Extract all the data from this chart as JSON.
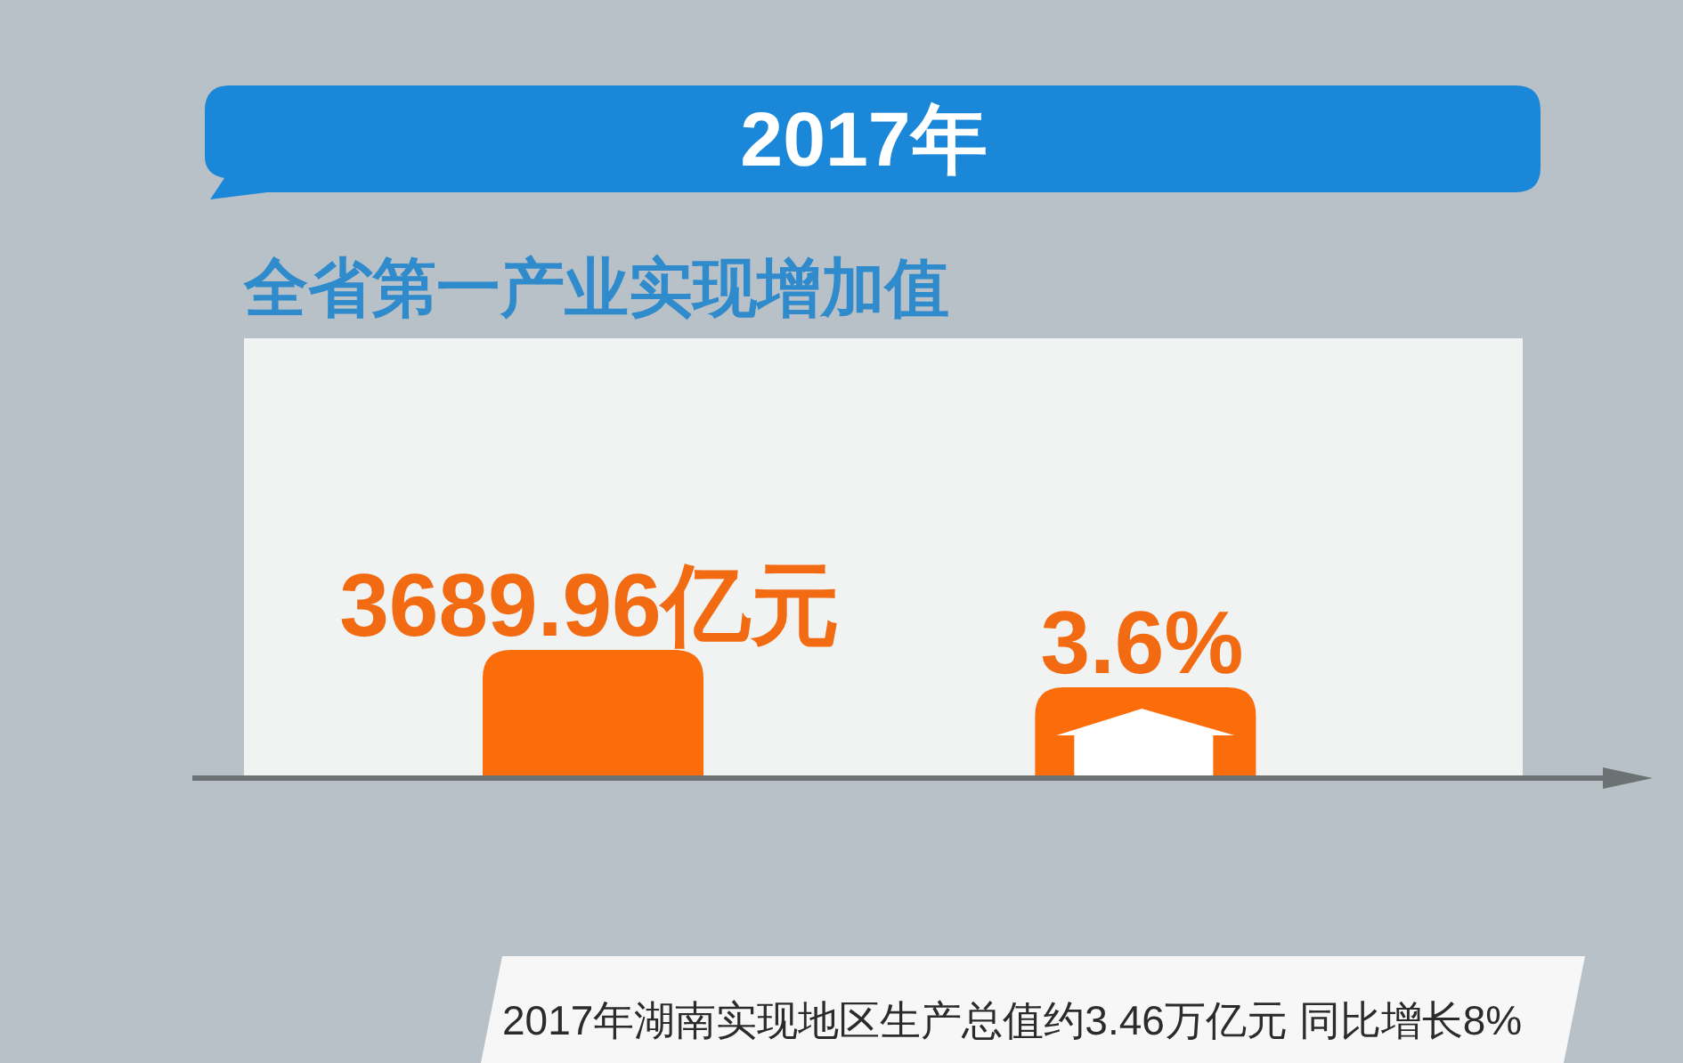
{
  "chart_data": {
    "type": "other",
    "title": "2017年",
    "subtitle": "全省第一产业实现增加值",
    "categories": [
      null,
      null
    ],
    "values": [
      3689.96,
      3.6
    ],
    "value_labels": [
      "3689.96亿元",
      "3.6%"
    ],
    "color": "#fb6d0a",
    "annotations": [
      "2017年湖南实现地区生产总值约3.46万亿元  同比增长8%"
    ]
  }
}
